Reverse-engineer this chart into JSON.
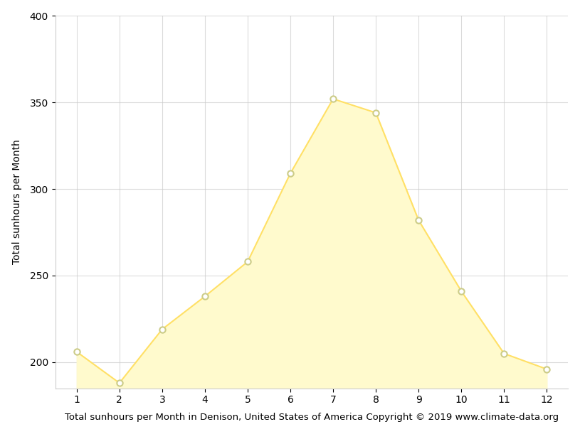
{
  "months": [
    1,
    2,
    3,
    4,
    5,
    6,
    7,
    8,
    9,
    10,
    11,
    12
  ],
  "sunhours": [
    206,
    188,
    219,
    238,
    258,
    309,
    352,
    344,
    282,
    241,
    205,
    196
  ],
  "fill_color": "#FFFACD",
  "fill_alpha": 1.0,
  "line_color": "#FFE066",
  "marker_color": "white",
  "marker_edge_color": "#CCCC88",
  "marker_size": 6,
  "marker_linewidth": 1.5,
  "ylabel": "Total sunhours per Month",
  "xlabel": "Total sunhours per Month in Denison, United States of America Copyright © 2019 www.climate-data.org",
  "ylim": [
    185,
    400
  ],
  "xlim": [
    0.5,
    12.5
  ],
  "yticks": [
    200,
    250,
    300,
    350,
    400
  ],
  "xticks": [
    1,
    2,
    3,
    4,
    5,
    6,
    7,
    8,
    9,
    10,
    11,
    12
  ],
  "grid_color": "#cccccc",
  "grid_alpha": 0.7,
  "background_color": "#ffffff",
  "tick_label_fontsize": 10,
  "axis_label_fontsize": 9.5,
  "ylabel_fontsize": 10
}
